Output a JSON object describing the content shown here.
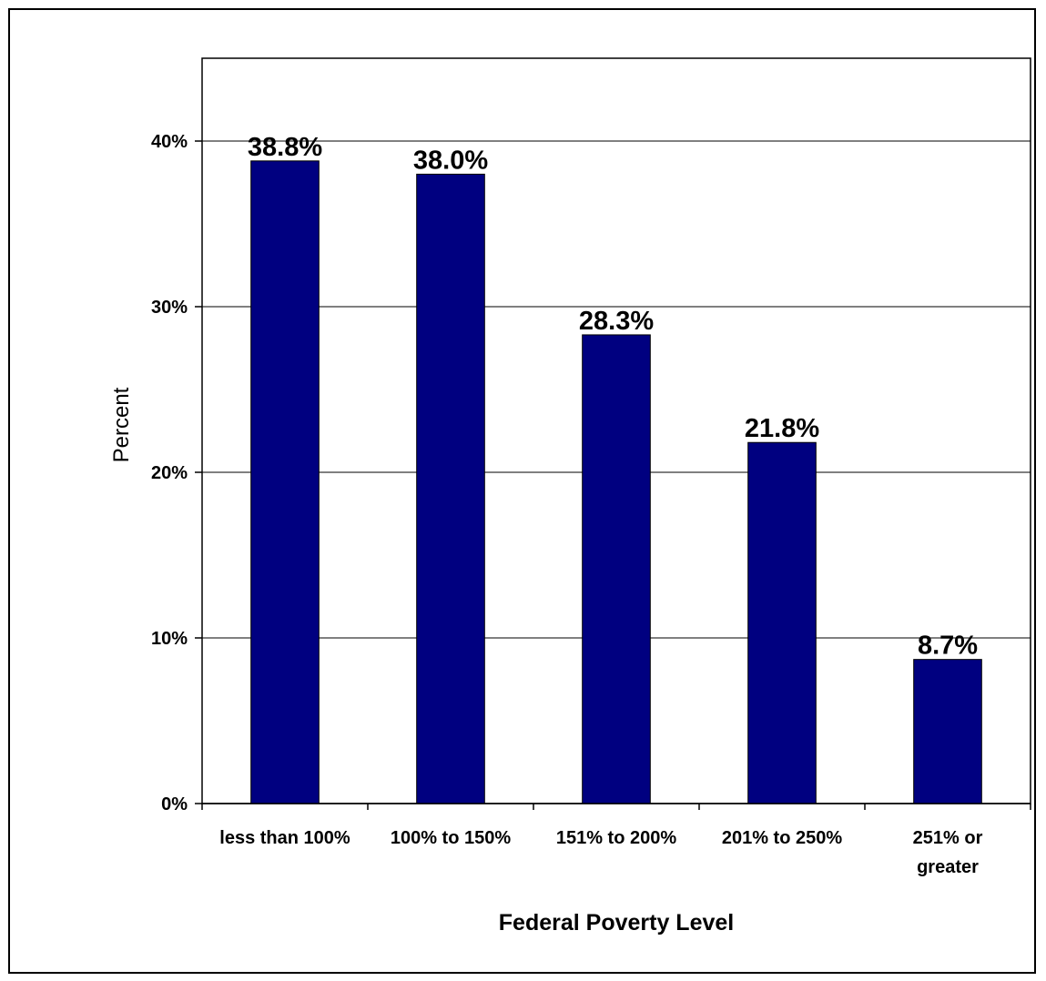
{
  "chart_data": {
    "type": "bar",
    "categories": [
      [
        "less than 100%"
      ],
      [
        "100% to 150%"
      ],
      [
        "151% to 200%"
      ],
      [
        "201% to 250%"
      ],
      [
        "251% or",
        "greater"
      ]
    ],
    "values": [
      38.8,
      38.0,
      28.3,
      21.8,
      8.7
    ],
    "data_labels": [
      "38.8%",
      "38.0%",
      "28.3%",
      "21.8%",
      "8.7%"
    ],
    "xlabel": "Federal Poverty Level",
    "ylabel": "Percent",
    "ylim": [
      0,
      45
    ],
    "yticks": [
      0,
      10,
      20,
      30,
      40
    ],
    "ytick_labels": [
      "0%",
      "10%",
      "20%",
      "30%",
      "40%"
    ],
    "grid": true,
    "colors": {
      "bar": "#000080",
      "gridline": "#000000",
      "background": "#ffffff"
    }
  }
}
